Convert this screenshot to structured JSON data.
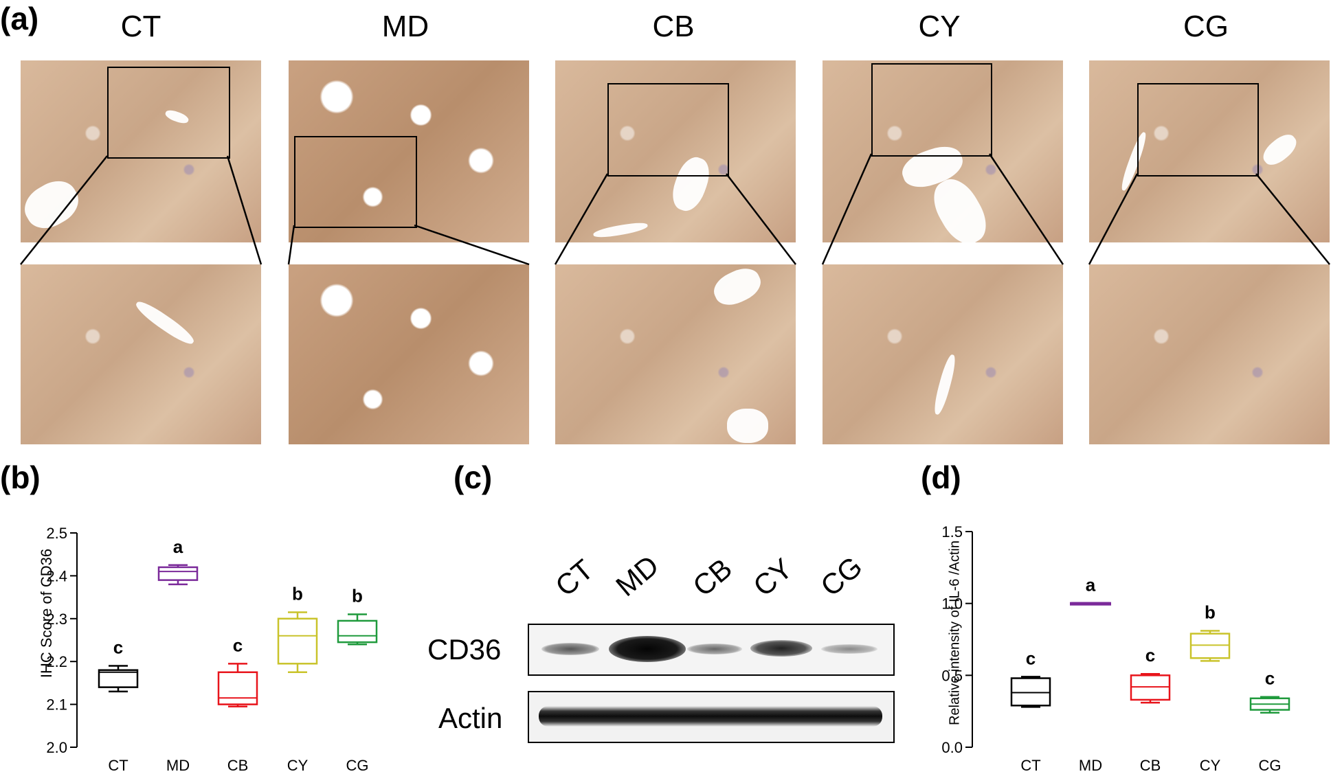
{
  "panels": {
    "a": "(a)",
    "b": "(b)",
    "c": "(c)",
    "d": "(d)"
  },
  "groups": [
    "CT",
    "MD",
    "CB",
    "CY",
    "CG"
  ],
  "colors": {
    "CT": "#000000",
    "MD": "#7b2a9a",
    "CB": "#e8141b",
    "CY": "#c9c32a",
    "CG": "#1f9a3c"
  },
  "blot": {
    "rows": [
      "CD36",
      "Actin"
    ],
    "lanes": [
      "CT",
      "MD",
      "CB",
      "CY",
      "CG"
    ]
  },
  "chart_data": [
    {
      "panel": "b",
      "type": "box",
      "ylabel": "IHC Score of CD36",
      "ylim": [
        2.0,
        2.5
      ],
      "yticks": [
        "2.0",
        "2.1",
        "2.2",
        "2.3",
        "2.4",
        "2.5"
      ],
      "categories": [
        "CT",
        "MD",
        "CB",
        "CY",
        "CG"
      ],
      "boxes": [
        {
          "min": 2.13,
          "q1": 2.14,
          "median": 2.175,
          "q3": 2.18,
          "max": 2.19,
          "letter": "c"
        },
        {
          "min": 2.38,
          "q1": 2.39,
          "median": 2.41,
          "q3": 2.42,
          "max": 2.425,
          "letter": "a"
        },
        {
          "min": 2.095,
          "q1": 2.1,
          "median": 2.115,
          "q3": 2.175,
          "max": 2.195,
          "letter": "c"
        },
        {
          "min": 2.175,
          "q1": 2.195,
          "median": 2.26,
          "q3": 2.3,
          "max": 2.315,
          "letter": "b"
        },
        {
          "min": 2.24,
          "q1": 2.245,
          "median": 2.26,
          "q3": 2.295,
          "max": 2.31,
          "letter": "b"
        }
      ]
    },
    {
      "panel": "d",
      "type": "box",
      "ylabel": "Relative intensity of IL-6 /Actin",
      "ylim": [
        0.0,
        1.5
      ],
      "yticks": [
        "0.0",
        "0.5",
        "1.0",
        "1.5"
      ],
      "categories": [
        "CT",
        "MD",
        "CB",
        "CY",
        "CG"
      ],
      "boxes": [
        {
          "min": 0.28,
          "q1": 0.29,
          "median": 0.38,
          "q3": 0.48,
          "max": 0.49,
          "letter": "c"
        },
        {
          "min": 1.0,
          "q1": 1.0,
          "median": 1.0,
          "q3": 1.0,
          "max": 1.0,
          "letter": "a"
        },
        {
          "min": 0.31,
          "q1": 0.33,
          "median": 0.42,
          "q3": 0.5,
          "max": 0.51,
          "letter": "c"
        },
        {
          "min": 0.6,
          "q1": 0.62,
          "median": 0.71,
          "q3": 0.79,
          "max": 0.81,
          "letter": "b"
        },
        {
          "min": 0.24,
          "q1": 0.26,
          "median": 0.3,
          "q3": 0.34,
          "max": 0.35,
          "letter": "c"
        }
      ]
    }
  ]
}
